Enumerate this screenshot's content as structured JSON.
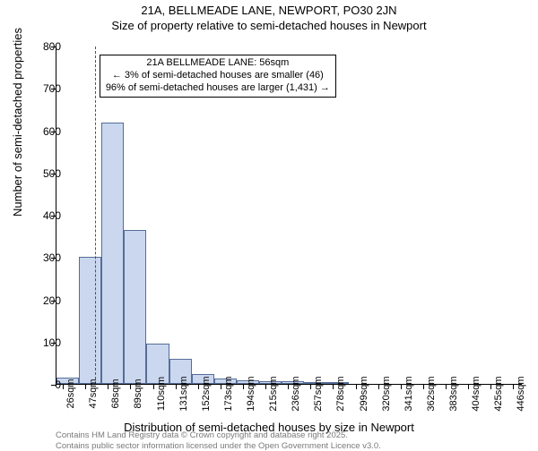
{
  "titles": {
    "line1": "21A, BELLMEADE LANE, NEWPORT, PO30 2JN",
    "line2": "Size of property relative to semi-detached houses in Newport"
  },
  "chart": {
    "type": "histogram",
    "background_color": "#ffffff",
    "bar_fill_color": "#cad7ef",
    "bar_border_color": "#566d97",
    "ref_line_color": "#c02028",
    "ref_line_sqm": 56,
    "ylabel": "Number of semi-detached properties",
    "xlabel": "Distribution of semi-detached houses by size in Newport",
    "ylim": [
      0,
      800
    ],
    "yticks": [
      0,
      100,
      200,
      300,
      400,
      500,
      600,
      700,
      800
    ],
    "xtick_sqm": [
      26,
      47,
      68,
      89,
      110,
      131,
      152,
      173,
      194,
      215,
      236,
      257,
      278,
      299,
      320,
      341,
      362,
      383,
      404,
      425,
      446
    ],
    "xtick_suffix": "sqm",
    "x_range_sqm": [
      20,
      455
    ],
    "bin_width_sqm": 21,
    "bins": [
      {
        "start": 20,
        "count": 14
      },
      {
        "start": 41,
        "count": 300
      },
      {
        "start": 62,
        "count": 617
      },
      {
        "start": 83,
        "count": 365
      },
      {
        "start": 104,
        "count": 95
      },
      {
        "start": 125,
        "count": 60
      },
      {
        "start": 146,
        "count": 23
      },
      {
        "start": 167,
        "count": 12
      },
      {
        "start": 188,
        "count": 8
      },
      {
        "start": 209,
        "count": 6
      },
      {
        "start": 230,
        "count": 6
      },
      {
        "start": 251,
        "count": 5
      },
      {
        "start": 272,
        "count": 1
      }
    ],
    "annotation": {
      "lines": [
        "21A BELLMEADE LANE: 56sqm",
        "← 3% of semi-detached houses are smaller (46)",
        "96% of semi-detached houses are larger (1,431) →"
      ],
      "left_sqm": 60,
      "top_y": 780
    }
  },
  "footer": {
    "line1": "Contains HM Land Registry data © Crown copyright and database right 2025.",
    "line2": "Contains public sector information licensed under the Open Government Licence v3.0."
  }
}
